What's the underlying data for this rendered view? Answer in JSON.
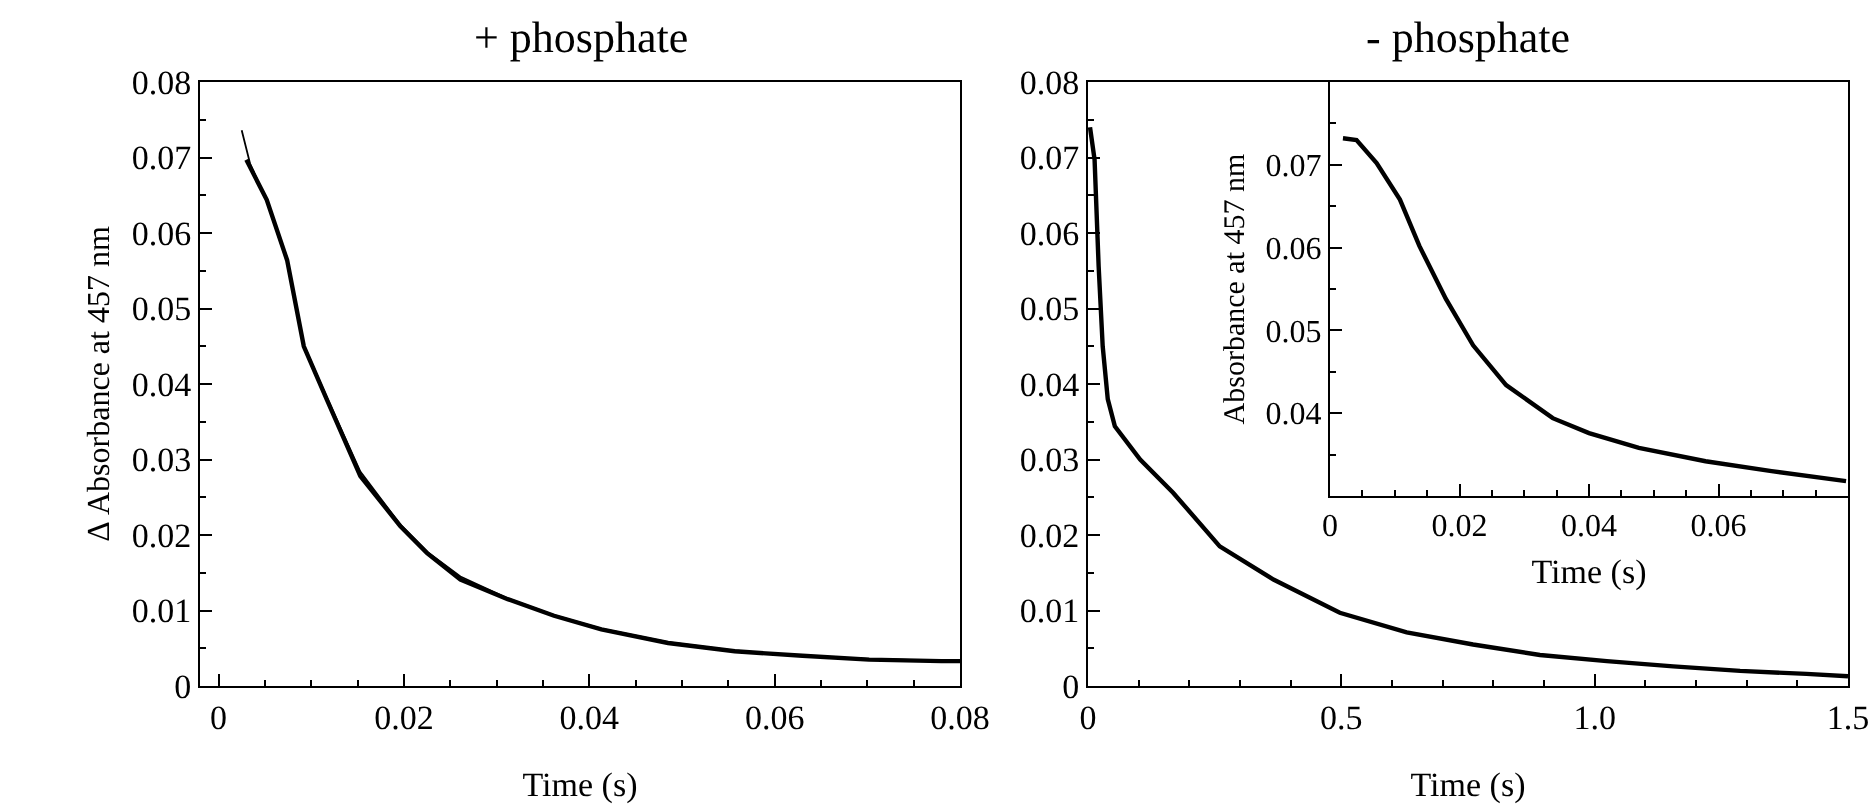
{
  "chart_data": [
    {
      "type": "line",
      "title": "+ phosphate",
      "xlabel": "Time (s)",
      "ylabel": "Δ Absorbance at 457 nm",
      "xlim": [
        -0.002,
        0.08
      ],
      "ylim": [
        0,
        0.08
      ],
      "xticks": [
        0,
        0.02,
        0.04,
        0.06,
        0.08
      ],
      "yticks": [
        0,
        0.01,
        0.02,
        0.03,
        0.04,
        0.05,
        0.06,
        0.07,
        0.08
      ],
      "series": [
        {
          "color": "#000000",
          "x": [
            0.003,
            0.0052,
            0.0074,
            0.0092,
            0.0117,
            0.0153,
            0.0196,
            0.0225,
            0.0261,
            0.0312,
            0.0362,
            0.0413,
            0.0485,
            0.0557,
            0.063,
            0.0702,
            0.078,
            0.08
          ],
          "values": [
            0.0697,
            0.0644,
            0.0564,
            0.045,
            0.0379,
            0.0278,
            0.0212,
            0.0176,
            0.0141,
            0.0115,
            0.0093,
            0.0075,
            0.0057,
            0.0046,
            0.004,
            0.0035,
            0.0033,
            0.0033
          ]
        },
        {
          "color": "#000000",
          "x": [
            0.0025,
            0.0034,
            0.0052,
            0.0074,
            0.0092,
            0.0117,
            0.0153,
            0.0196,
            0.0225,
            0.0261,
            0.0312,
            0.0362,
            0.0413,
            0.0485,
            0.0557,
            0.063,
            0.0702,
            0.08
          ],
          "values": [
            0.0736,
            0.0692,
            0.0642,
            0.0562,
            0.0452,
            0.0382,
            0.0284,
            0.0214,
            0.0178,
            0.0145,
            0.0116,
            0.0094,
            0.0076,
            0.0058,
            0.0047,
            0.004,
            0.0036,
            0.0033
          ]
        }
      ]
    },
    {
      "type": "line",
      "title": "- phosphate",
      "xlabel": "Time (s)",
      "xlim": [
        0,
        1.5
      ],
      "ylim": [
        0,
        0.08
      ],
      "xticks": [
        0,
        0.5,
        {
          "value": 1,
          "label": "1.0"
        },
        1.5
      ],
      "yticks": [
        0,
        0.01,
        0.02,
        0.03,
        0.04,
        0.05,
        0.06,
        0.07,
        0.08
      ],
      "series": [
        {
          "color": "#000000",
          "x": [
            0.004,
            0.013,
            0.021,
            0.029,
            0.039,
            0.053,
            0.103,
            0.168,
            0.26,
            0.366,
            0.497,
            0.629,
            0.76,
            0.892,
            1.024,
            1.155,
            1.287,
            1.418,
            1.5
          ],
          "values": [
            0.074,
            0.0697,
            0.0556,
            0.045,
            0.038,
            0.0344,
            0.03,
            0.0256,
            0.0185,
            0.0141,
            0.0097,
            0.0071,
            0.0055,
            0.0041,
            0.0033,
            0.0026,
            0.002,
            0.0016,
            0.0013
          ]
        }
      ]
    },
    {
      "type": "line",
      "xlabel": "Time (s)",
      "ylabel": "Absorbance at 457 nm",
      "xlim": [
        0,
        0.08
      ],
      "ylim": [
        0.03,
        0.08
      ],
      "xticks": [
        0,
        0.02,
        0.04,
        0.06
      ],
      "yticks": [
        0.04,
        0.05,
        0.06,
        0.07
      ],
      "series": [
        {
          "color": "#000000",
          "x": [
            0.002,
            0.0041,
            0.0072,
            0.0108,
            0.0138,
            0.0179,
            0.0221,
            0.0272,
            0.0344,
            0.04,
            0.0477,
            0.058,
            0.0682,
            0.0797
          ],
          "values": [
            0.0732,
            0.073,
            0.0702,
            0.0658,
            0.0602,
            0.0538,
            0.0482,
            0.0434,
            0.0394,
            0.0376,
            0.0358,
            0.0342,
            0.033,
            0.0318
          ]
        }
      ]
    }
  ]
}
